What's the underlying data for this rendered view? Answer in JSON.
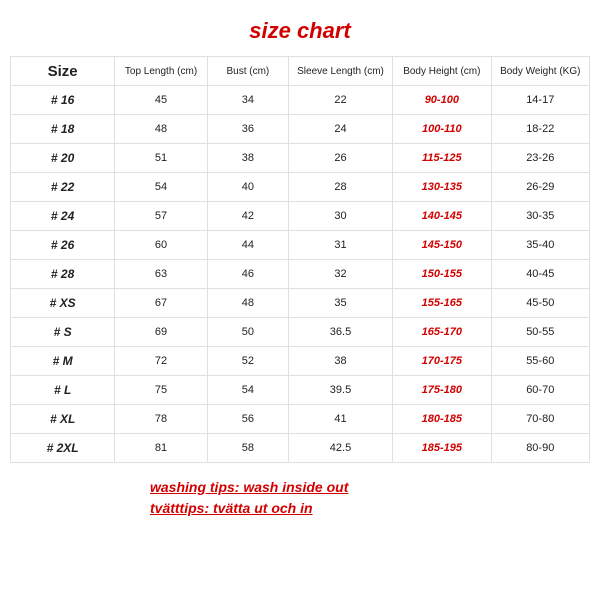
{
  "title": "size chart",
  "columns": [
    "Size",
    "Top Length (cm)",
    "Bust (cm)",
    "Sleeve Length (cm)",
    "Body Height (cm)",
    "Body Weight (KG)"
  ],
  "rows": [
    [
      "# 16",
      "45",
      "34",
      "22",
      "90-100",
      "14-17"
    ],
    [
      "# 18",
      "48",
      "36",
      "24",
      "100-110",
      "18-22"
    ],
    [
      "# 20",
      "51",
      "38",
      "26",
      "115-125",
      "23-26"
    ],
    [
      "# 22",
      "54",
      "40",
      "28",
      "130-135",
      "26-29"
    ],
    [
      "# 24",
      "57",
      "42",
      "30",
      "140-145",
      "30-35"
    ],
    [
      "# 26",
      "60",
      "44",
      "31",
      "145-150",
      "35-40"
    ],
    [
      "# 28",
      "63",
      "46",
      "32",
      "150-155",
      "40-45"
    ],
    [
      "# XS",
      "67",
      "48",
      "35",
      "155-165",
      "45-50"
    ],
    [
      "# S",
      "69",
      "50",
      "36.5",
      "165-170",
      "50-55"
    ],
    [
      "# M",
      "72",
      "52",
      "38",
      "170-175",
      "55-60"
    ],
    [
      "# L",
      "75",
      "54",
      "39.5",
      "175-180",
      "60-70"
    ],
    [
      "# XL",
      "78",
      "56",
      "41",
      "180-185",
      "70-80"
    ],
    [
      "# 2XL",
      "81",
      "58",
      "42.5",
      "185-195",
      "80-90"
    ]
  ],
  "highlight_col_index": 4,
  "tips": [
    "washing tips: wash inside out",
    "tvätttips: tvätta ut och in"
  ],
  "colors": {
    "accent": "#d30000",
    "border": "#e0e0e0",
    "text": "#222222",
    "background": "#ffffff"
  },
  "fontsizes": {
    "title": 22,
    "header_size": 15,
    "header_col": 10,
    "cell": 11,
    "tips": 14
  }
}
